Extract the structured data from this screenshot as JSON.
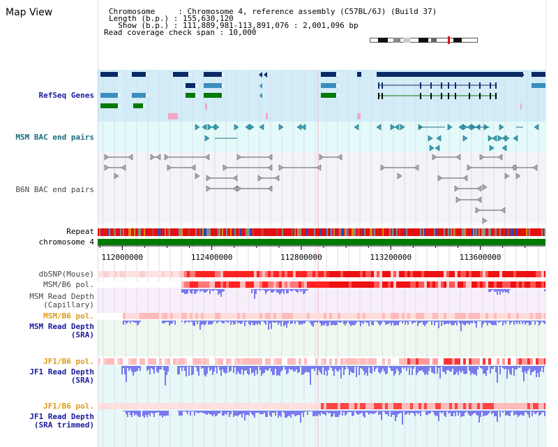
{
  "app": {
    "title": "Map View"
  },
  "header": {
    "chromosome_line": "Chromosome     : Chromosome 4, reference assembly (C57BL/6J) (Build 37)",
    "length_line": "Length (b.p.) : 155,630,120",
    "show_line": "  Show (b.p.) : 111,889,981-113,891,076 : 2,001,096 bp",
    "coverage_line": "Read coverage check span : 10,000"
  },
  "tracks": {
    "refseq": "RefSeq Genes",
    "msm_bac": "MSM BAC end pairs",
    "b6n_bac": "B6N BAC end pairs",
    "repeat": "Repeat",
    "chromosome": "chromosome 4",
    "dbsnp": "dbSNP(Mouse)",
    "msm_b6_pol": "MSM/B6 pol.",
    "msm_depth_cap_1": "MSM Read Depth",
    "msm_depth_cap_2": "(Capillary)",
    "msm_b6_pol_sra": "MSM/B6 pol.",
    "msm_depth_sra_1": "MSM Read Depth",
    "msm_depth_sra_2": "(SRA)",
    "jf1_b6_pol": "JF1/B6 pol.",
    "jf1_depth_1": "JF1 Read Depth",
    "jf1_depth_2": "(SRA)",
    "jf1_b6_pol_trim": "JF1/B6 pol.",
    "jf1_trim_1": "JF1 Read Depth",
    "jf1_trim_2": "(SRA trimmed)"
  },
  "axis": {
    "start": 111889981,
    "end": 113891076,
    "ticks": [
      {
        "value": 112000000,
        "label": "112000000"
      },
      {
        "value": 112400000,
        "label": "112400000"
      },
      {
        "value": 112800000,
        "label": "112800000"
      },
      {
        "value": 113200000,
        "label": "113200000"
      },
      {
        "value": 113600000,
        "label": "113600000"
      }
    ]
  },
  "colors": {
    "refseq_bg": "#d2ecf8",
    "bac_bg": "#e4fafa",
    "b6n_bg": "#f4f4f8",
    "gene_navy": "#0a2a66",
    "gene_blue": "#3a8fbf",
    "gene_green": "#007a00",
    "chromosome": "#007a00",
    "depth": "#7a7aee",
    "pol_red": "#ee1111",
    "pol_pink": "#fbc0c0",
    "msm_cap_bg": "#f8eefa",
    "msm_sra_bg": "#eef8ee",
    "jf1_bg": "#e8f8f8"
  }
}
